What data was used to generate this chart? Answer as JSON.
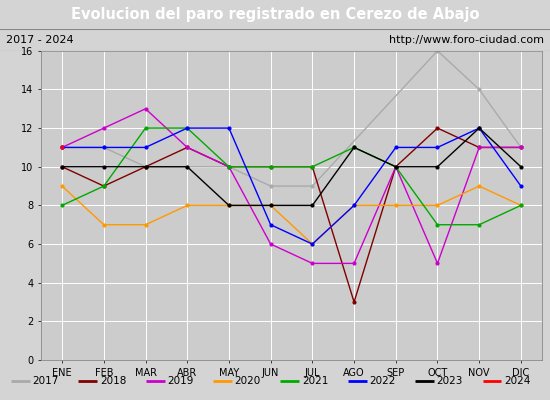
{
  "title": "Evolucion del paro registrado en Cerezo de Abajo",
  "subtitle_left": "2017 - 2024",
  "subtitle_right": "http://www.foro-ciudad.com",
  "months": [
    "ENE",
    "FEB",
    "MAR",
    "ABR",
    "MAY",
    "JUN",
    "JUL",
    "AGO",
    "SEP",
    "OCT",
    "NOV",
    "DIC"
  ],
  "ylim": [
    0,
    16
  ],
  "yticks": [
    0,
    2,
    4,
    6,
    8,
    10,
    12,
    14,
    16
  ],
  "series": {
    "2017": {
      "values": [
        11,
        11,
        10,
        10,
        10,
        9,
        9,
        null,
        null,
        16,
        14,
        11
      ],
      "color": "#aaaaaa"
    },
    "2018": {
      "values": [
        10,
        9,
        10,
        11,
        10,
        10,
        10,
        3,
        10,
        12,
        11,
        11
      ],
      "color": "#800000"
    },
    "2019": {
      "values": [
        11,
        12,
        13,
        11,
        10,
        6,
        5,
        5,
        10,
        5,
        11,
        11
      ],
      "color": "#cc00cc"
    },
    "2020": {
      "values": [
        9,
        7,
        7,
        8,
        8,
        8,
        6,
        8,
        8,
        8,
        9,
        8
      ],
      "color": "#ff9900"
    },
    "2021": {
      "values": [
        8,
        9,
        12,
        12,
        10,
        10,
        10,
        11,
        10,
        7,
        7,
        8
      ],
      "color": "#00aa00"
    },
    "2022": {
      "values": [
        11,
        11,
        11,
        12,
        12,
        7,
        6,
        8,
        11,
        11,
        12,
        9
      ],
      "color": "#0000ff"
    },
    "2023": {
      "values": [
        10,
        10,
        10,
        10,
        8,
        8,
        8,
        11,
        10,
        10,
        12,
        10
      ],
      "color": "#000000"
    },
    "2024": {
      "values": [
        11,
        null,
        null,
        null,
        null,
        null,
        null,
        null,
        null,
        null,
        null,
        null
      ],
      "color": "#ff0000"
    }
  },
  "fig_width": 5.5,
  "fig_height": 4.0,
  "fig_dpi": 100,
  "background_color": "#d4d4d4",
  "plot_bg_color": "#cccccc",
  "title_bg_color": "#4472c4",
  "title_color": "#ffffff",
  "subtitle_bg_color": "#e8e8e8",
  "grid_color": "#ffffff",
  "legend_bg_color": "#f0f0f0",
  "title_fontsize": 10.5,
  "subtitle_fontsize": 8,
  "tick_fontsize": 7,
  "legend_fontsize": 7.5
}
